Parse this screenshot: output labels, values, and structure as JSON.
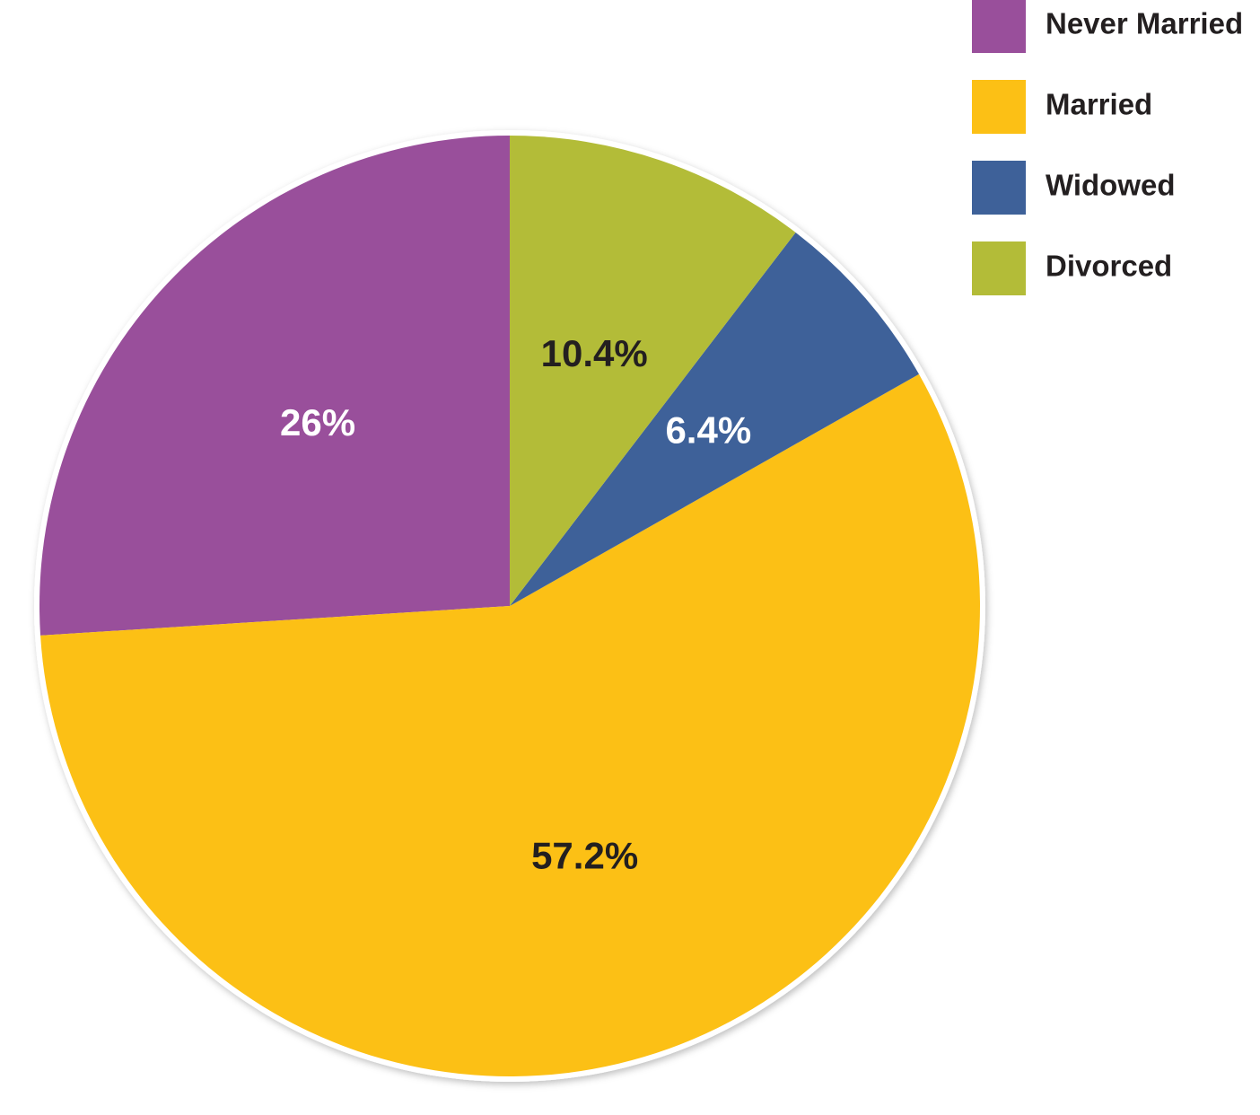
{
  "chart_data": {
    "type": "pie",
    "categories": [
      "Never Married",
      "Married",
      "Widowed",
      "Divorced"
    ],
    "values": [
      26,
      57.2,
      6.4,
      10.4
    ],
    "value_labels": [
      "26%",
      "57.2%",
      "6.4%",
      "10.4%"
    ],
    "colors": [
      "#994f9b",
      "#fcc015",
      "#3e6199",
      "#b3bc38"
    ],
    "legend": "top-right"
  }
}
